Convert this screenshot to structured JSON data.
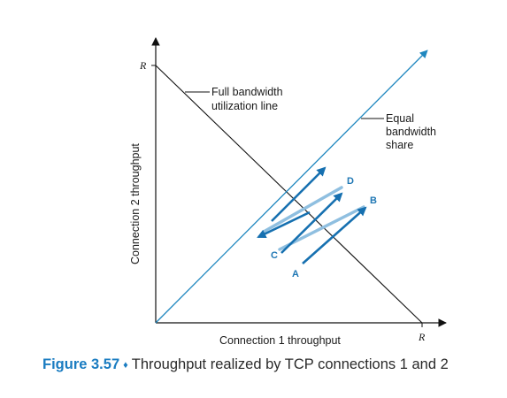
{
  "diagram": {
    "r_label_y": "R",
    "r_label_x": "R",
    "x_axis_label": "Connection 1 throughput",
    "y_axis_label": "Connection 2 throughput",
    "full_bandwidth_label_line1": "Full bandwidth",
    "full_bandwidth_label_line2": "utilization line",
    "equal_share_label_line1": "Equal",
    "equal_share_label_line2": "bandwidth",
    "equal_share_label_line3": "share",
    "points": {
      "a": "A",
      "b": "B",
      "c": "C",
      "d": "D"
    },
    "colors": {
      "equal_share_line": "#1f87bf",
      "additive_increase_arrow": "#1670b0",
      "multiplicative_decrease_arrow": "#8fbfe0",
      "axes": "#111111"
    }
  },
  "caption": {
    "figure_number": "Figure 3.57",
    "separator": "♦",
    "text": "Throughput realized by TCP connections 1 and 2"
  }
}
